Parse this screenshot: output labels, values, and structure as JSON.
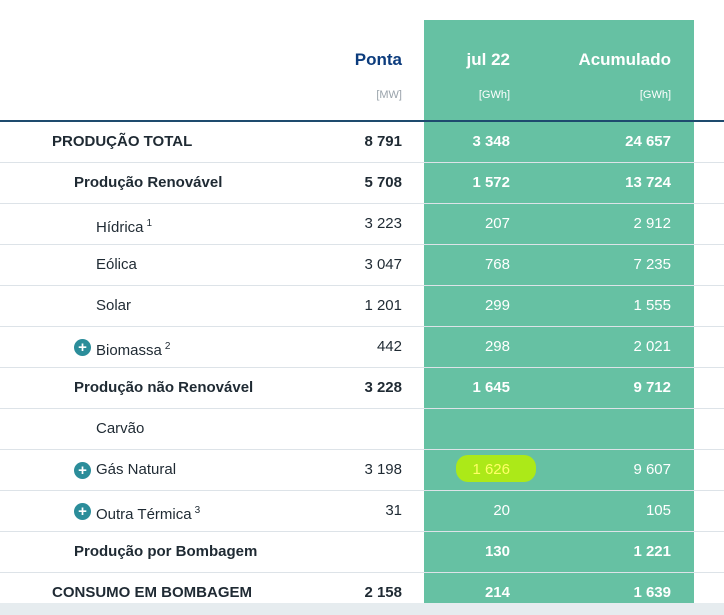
{
  "header": {
    "ponta": {
      "title": "Ponta",
      "unit": "[MW]"
    },
    "jul22": {
      "title": "jul 22",
      "unit": "[GWh]"
    },
    "acumulado": {
      "title": "Acumulado",
      "unit": "[GWh]"
    }
  },
  "rows": [
    {
      "label": "PRODUÇÃO TOTAL",
      "sup": "",
      "ponta": "8 791",
      "jul": "3 348",
      "acum": "24 657"
    },
    {
      "label": "Produção Renovável",
      "sup": "",
      "ponta": "5 708",
      "jul": "1 572",
      "acum": "13 724"
    },
    {
      "label": "Hídrica",
      "sup": "1",
      "ponta": "3 223",
      "jul": "207",
      "acum": "2 912"
    },
    {
      "label": "Eólica",
      "sup": "",
      "ponta": "3 047",
      "jul": "768",
      "acum": "7 235"
    },
    {
      "label": "Solar",
      "sup": "",
      "ponta": "1 201",
      "jul": "299",
      "acum": "1 555"
    },
    {
      "label": "Biomassa",
      "sup": "2",
      "ponta": "442",
      "jul": "298",
      "acum": "2 021"
    },
    {
      "label": "Produção não Renovável",
      "sup": "",
      "ponta": "3 228",
      "jul": "1 645",
      "acum": "9 712"
    },
    {
      "label": "Carvão",
      "sup": "",
      "ponta": "",
      "jul": "",
      "acum": ""
    },
    {
      "label": "Gás Natural",
      "sup": "",
      "ponta": "3 198",
      "jul": "1 626",
      "acum": "9 607"
    },
    {
      "label": "Outra Térmica",
      "sup": "3",
      "ponta": "31",
      "jul": "20",
      "acum": "105"
    },
    {
      "label": "Produção por Bombagem",
      "sup": "",
      "ponta": "",
      "jul": "130",
      "acum": "1 221"
    },
    {
      "label": "CONSUMO EM BOMBAGEM",
      "sup": "",
      "ponta": "2 158",
      "jul": "214",
      "acum": "1 639"
    }
  ],
  "icons": {
    "expand": "plus-circle-icon",
    "expand_glyph": "+"
  },
  "colors": {
    "accent_column": "#66c1a3",
    "header_blue": "#0c3c7d",
    "highlight": "#b8f000"
  }
}
